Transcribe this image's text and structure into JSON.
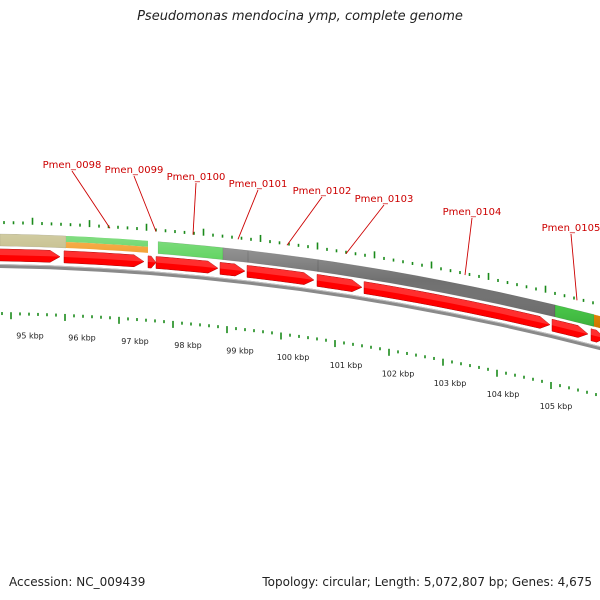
{
  "title": "Pseudomonas mendocina ymp, complete genome",
  "footer": {
    "accession": "Accession: NC_009439",
    "topology": "Topology: circular; Length: 5,072,807 bp; Genes: 4,675"
  },
  "colors": {
    "gene_label": "#cc0000",
    "tick": "#1a8a1a",
    "cds_forward": "#ff0000",
    "green_feature": "#44cc44",
    "grey_feature": "#707070",
    "olive_feature": "#b8b070",
    "orange_feature": "#f08a00",
    "backbone": "#8a8a8a"
  },
  "gene_labels": [
    "Pmen_0098",
    "Pmen_0099",
    "Pmen_0100",
    "Pmen_0101",
    "Pmen_0102",
    "Pmen_0103",
    "Pmen_0104",
    "Pmen_0105"
  ],
  "kbp_labels": [
    "95 kbp",
    "96 kbp",
    "97 kbp",
    "98 kbp",
    "99 kbp",
    "100 kbp",
    "101 kbp",
    "102 kbp",
    "103 kbp",
    "104 kbp",
    "105 kbp"
  ]
}
